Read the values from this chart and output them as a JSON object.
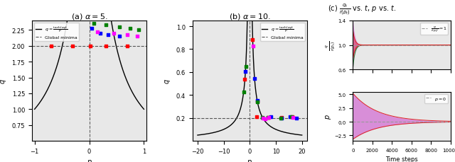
{
  "fig_width": 6.4,
  "fig_height": 2.3,
  "dpi": 100,
  "bg_color": "#e8e8e8",
  "title_a": "(a) $\\alpha = 5.$",
  "title_b": "(b) $\\alpha = 10.$",
  "title_c": "(c) $\\frac{q_t}{r(p_t)}$ vs. $t$, $p$ vs. $t$.",
  "panel_a": {
    "alpha": 5,
    "ylabel": "$q$",
    "xlabel": "$p$",
    "ylim": [
      0.5,
      2.4
    ],
    "yticks": [
      0.75,
      1.0,
      1.25,
      1.5,
      1.75,
      2.0,
      2.25
    ],
    "xticks": [
      -1,
      0,
      1
    ],
    "legend_curve": "$q = \\frac{\\tanh(\\alpha p)}{p}$",
    "legend_minima": "Global minima",
    "hline_y": 2.0
  },
  "panel_b": {
    "alpha": 10,
    "ylabel": "$q$",
    "xlabel": "$p$",
    "ylim": [
      0.0,
      1.05
    ],
    "yticks": [
      0.2,
      0.4,
      0.6,
      0.8,
      1.0
    ],
    "xticks": [
      -20,
      -10,
      0,
      10,
      20
    ],
    "legend_curve": "$q = \\frac{\\tanh(\\alpha p)}{p}$",
    "legend_minima": "Global minima",
    "hline_y": 0.2
  },
  "panel_c_top": {
    "ylabel": "$\\frac{q}{r(p_t)}$",
    "ylim": [
      0.6,
      1.4
    ],
    "yticks": [
      0.6,
      1.0,
      1.4
    ],
    "xlim": [
      0,
      10000
    ],
    "xticks": [
      0,
      2000,
      4000,
      6000,
      8000,
      10000
    ],
    "hline_y": 1.0,
    "hline_label": "$\\frac{q}{r(p_t)} = 1$",
    "decay_fast": 200,
    "decay_slow": 2000,
    "top_start": 1.4,
    "bot_start": 0.62,
    "purple_color": "#cc44cc",
    "red_color": "#dd2222",
    "green_color": "#228833"
  },
  "panel_c_bot": {
    "ylabel": "$p$",
    "xlabel": "Time steps",
    "ylim": [
      -3.5,
      5.5
    ],
    "yticks": [
      -2.5,
      0.0,
      2.5,
      5.0
    ],
    "xlim": [
      0,
      10000
    ],
    "xticks": [
      0,
      2000,
      4000,
      6000,
      8000,
      10000
    ],
    "hline_y": 0.0,
    "hline_label": "$p = 0$",
    "top_start": 5.2,
    "bot_start": -3.2,
    "decay": 2500,
    "purple_color": "#cc44cc",
    "red_color": "#dd2222"
  }
}
